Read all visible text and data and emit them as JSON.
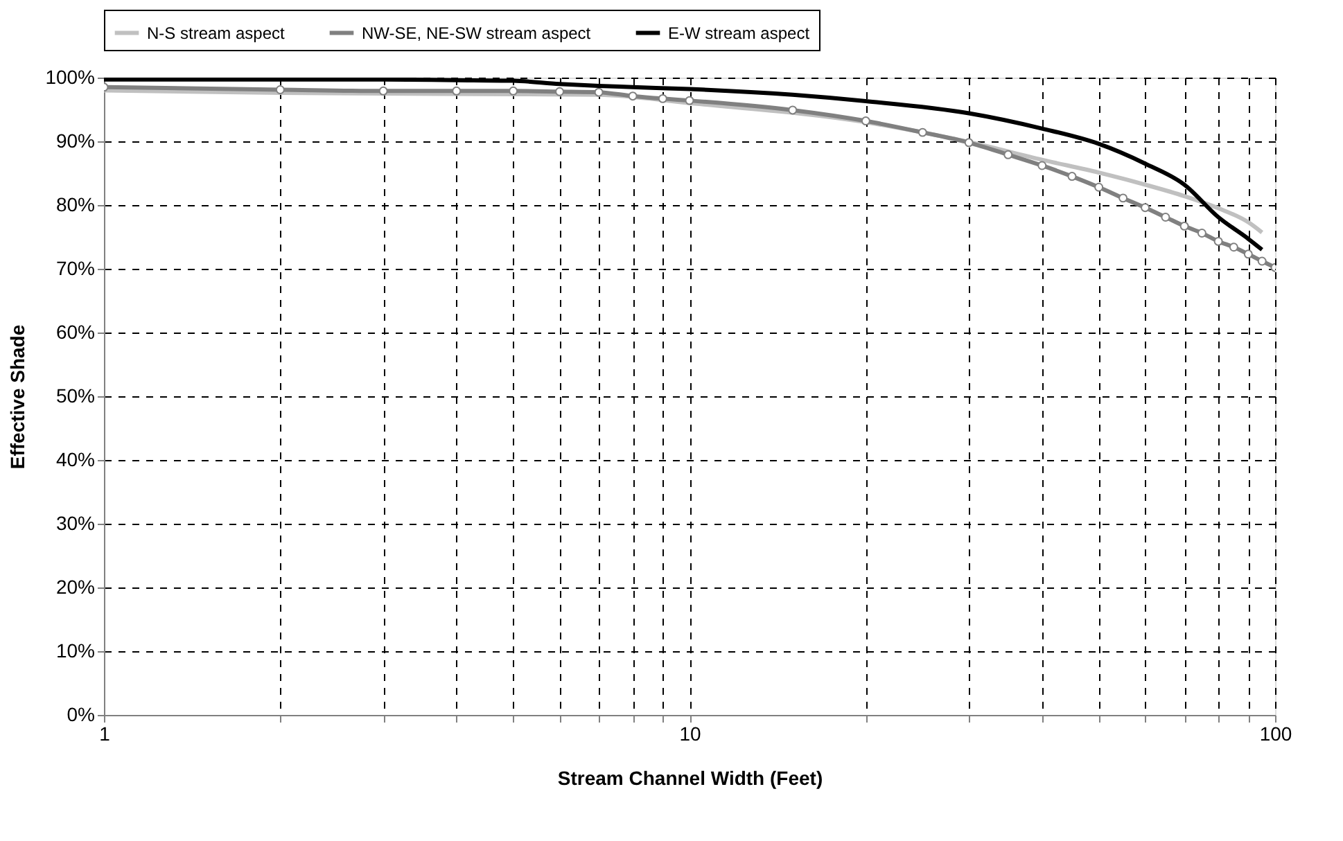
{
  "chart_data": {
    "type": "line",
    "xlabel": "Stream Channel Width (Feet)",
    "ylabel": "Effective Shade",
    "log": "x",
    "grid": true,
    "legend": "top",
    "line_style": "solid",
    "xlim": [
      1,
      100
    ],
    "xticks": [
      1,
      {
        "value": 2,
        "label": null
      },
      {
        "value": 3,
        "label": null
      },
      {
        "value": 4,
        "label": null
      },
      {
        "value": 5,
        "label": null
      },
      {
        "value": 6,
        "label": null
      },
      {
        "value": 7,
        "label": null
      },
      {
        "value": 8,
        "label": null
      },
      {
        "value": 9,
        "label": null
      },
      10,
      {
        "value": 20,
        "label": null
      },
      {
        "value": 30,
        "label": null
      },
      {
        "value": 40,
        "label": null
      },
      {
        "value": 50,
        "label": null
      },
      {
        "value": 60,
        "label": null
      },
      {
        "value": 70,
        "label": null
      },
      {
        "value": 80,
        "label": null
      },
      {
        "value": 90,
        "label": null
      },
      100
    ],
    "ylim": [
      0,
      100
    ],
    "yticks": [
      {
        "value": 0,
        "label": "0%"
      },
      {
        "value": 10,
        "label": "10%"
      },
      {
        "value": 20,
        "label": "20%"
      },
      {
        "value": 30,
        "label": "30%"
      },
      {
        "value": 40,
        "label": "40%"
      },
      {
        "value": 50,
        "label": "50%"
      },
      {
        "value": 60,
        "label": "60%"
      },
      {
        "value": 70,
        "label": "70%"
      },
      {
        "value": 80,
        "label": "80%"
      },
      {
        "value": 90,
        "label": "90%"
      },
      {
        "value": 100,
        "label": "100%"
      }
    ],
    "series": [
      {
        "name": "N-S stream aspect",
        "color": "#c0c0c0",
        "marker": "none",
        "x": [
          1,
          2,
          5,
          7,
          10,
          20,
          30,
          40,
          50,
          60,
          70,
          80,
          90,
          95
        ],
        "values": [
          98.0,
          97.6,
          97.4,
          97.3,
          96.0,
          93.0,
          89.9,
          87.1,
          85.1,
          83.2,
          81.4,
          79.5,
          77.3,
          75.7
        ]
      },
      {
        "name": "NW-SE, NE-SW stream aspect",
        "color": "#808080",
        "marker": "circle",
        "x": [
          1,
          2,
          3,
          4,
          5,
          6,
          7,
          8,
          9,
          10,
          15,
          20,
          25,
          30,
          35,
          40,
          45,
          50,
          55,
          60,
          65,
          70,
          75,
          80,
          85,
          90,
          95,
          100
        ],
        "values": [
          98.5,
          98.1,
          97.9,
          97.9,
          97.9,
          97.8,
          97.7,
          97.1,
          96.7,
          96.4,
          94.9,
          93.2,
          91.4,
          89.8,
          87.9,
          86.2,
          84.5,
          82.8,
          81.1,
          79.6,
          78.1,
          76.7,
          75.6,
          74.3,
          73.4,
          72.3,
          71.2,
          70.2
        ]
      },
      {
        "name": "E-W stream aspect",
        "color": "#000000",
        "marker": "none",
        "x": [
          1,
          2,
          3,
          4,
          5,
          6,
          7,
          8,
          10,
          15,
          20,
          30,
          40,
          50,
          60,
          70,
          80,
          90,
          95
        ],
        "values": [
          99.7,
          99.7,
          99.7,
          99.6,
          99.5,
          99.0,
          98.7,
          98.5,
          98.2,
          97.3,
          96.3,
          94.4,
          92.0,
          89.6,
          86.5,
          83.2,
          78.1,
          74.7,
          73.0
        ]
      }
    ]
  }
}
